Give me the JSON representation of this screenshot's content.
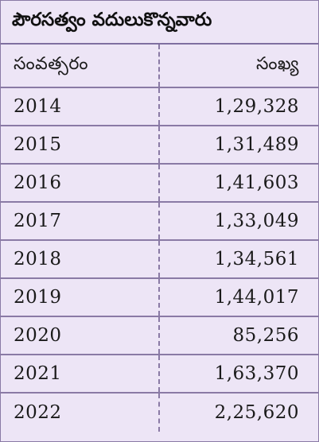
{
  "chart_data": {
    "type": "table",
    "title": "పౌరసత్వం వదులుకొన్నవారు",
    "columns": [
      "సంవత్సరం",
      "సంఖ్య"
    ],
    "rows": [
      {
        "year": "2014",
        "count": "1,29,328"
      },
      {
        "year": "2015",
        "count": "1,31,489"
      },
      {
        "year": "2016",
        "count": "1,41,603"
      },
      {
        "year": "2017",
        "count": "1,33,049"
      },
      {
        "year": "2018",
        "count": "1,34,561"
      },
      {
        "year": "2019",
        "count": "1,44,017"
      },
      {
        "year": "2020",
        "count": "85,256"
      },
      {
        "year": "2021",
        "count": "1,63,370"
      },
      {
        "year": "2022",
        "count": "2,25,620"
      }
    ]
  },
  "colors": {
    "background": "#ede5f6",
    "rule": "#8a7aa5",
    "text": "#1a1a1a"
  }
}
